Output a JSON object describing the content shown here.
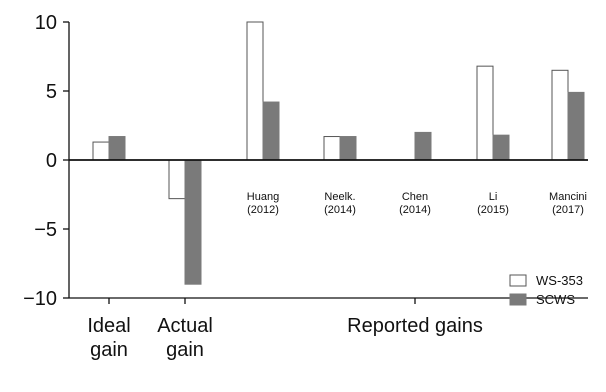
{
  "chart_data": {
    "type": "bar",
    "title": "",
    "xlabel": "",
    "ylabel": "",
    "ylim": [
      -10,
      10
    ],
    "yticks": [
      10,
      5,
      0,
      -5,
      -10
    ],
    "grid": false,
    "legend_position": "bottom-right",
    "categories": [
      {
        "label_line1": "",
        "label_line2": ""
      },
      {
        "label_line1": "",
        "label_line2": ""
      },
      {
        "label_line1": "Huang",
        "label_line2": "(2012)"
      },
      {
        "label_line1": "Neelk.",
        "label_line2": "(2014)"
      },
      {
        "label_line1": "Chen",
        "label_line2": "(2014)"
      },
      {
        "label_line1": "Li",
        "label_line2": "(2015)"
      },
      {
        "label_line1": "Mancini",
        "label_line2": "(2017)"
      }
    ],
    "series": [
      {
        "name": "WS-353",
        "color": "#ffffff",
        "stroke": "#555555",
        "values": [
          1.3,
          -2.8,
          10.0,
          1.7,
          null,
          6.8,
          6.5
        ]
      },
      {
        "name": "SCWS",
        "color": "#7a7a7a",
        "stroke": "#7a7a7a",
        "values": [
          1.7,
          -9.0,
          4.2,
          1.7,
          2.0,
          1.8,
          4.9
        ]
      }
    ],
    "group_labels": [
      {
        "line1": "Ideal",
        "line2": "gain"
      },
      {
        "line1": "Actual",
        "line2": "gain"
      },
      {
        "line1": "Reported gains",
        "line2": ""
      }
    ]
  }
}
